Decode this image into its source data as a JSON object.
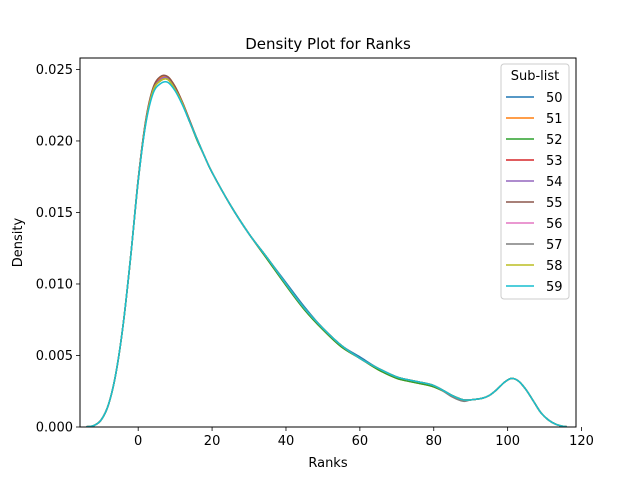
{
  "chart_data": {
    "type": "line",
    "title": "Density Plot for Ranks",
    "xlabel": "Ranks",
    "ylabel": "Density",
    "xlim": [
      -15.75,
      118.5
    ],
    "ylim": [
      0,
      0.0258
    ],
    "xticks": [
      0,
      20,
      40,
      60,
      80,
      100,
      120
    ],
    "yticks": [
      0.0,
      0.005,
      0.01,
      0.015,
      0.02,
      0.025
    ],
    "ytick_labels": [
      "0.000",
      "0.005",
      "0.010",
      "0.015",
      "0.020",
      "0.025"
    ],
    "grid": false,
    "legend": {
      "title": "Sub-list",
      "placement": "top-right"
    },
    "x": [
      -14,
      -12,
      -10,
      -8,
      -6,
      -4,
      -2,
      0,
      2,
      4,
      6,
      8,
      10,
      12,
      14,
      16,
      18,
      20,
      25,
      30,
      35,
      40,
      45,
      50,
      55,
      60,
      65,
      70,
      75,
      80,
      85,
      88,
      90,
      93,
      95,
      97,
      99,
      101,
      103,
      105,
      107,
      109,
      111,
      113,
      115,
      116
    ],
    "series": [
      {
        "name": "50",
        "color": "#1f77b4",
        "values": [
          2e-05,
          0.0001,
          0.0005,
          0.0016,
          0.0038,
          0.0073,
          0.012,
          0.0173,
          0.0213,
          0.0236,
          0.0243,
          0.0244,
          0.0237,
          0.0226,
          0.0213,
          0.0201,
          0.0189,
          0.0178,
          0.0155,
          0.0135,
          0.0118,
          0.0101,
          0.0084,
          0.0069,
          0.0057,
          0.0049,
          0.0041,
          0.0035,
          0.0032,
          0.0029,
          0.0022,
          0.0019,
          0.0019,
          0.002,
          0.0022,
          0.0026,
          0.0031,
          0.0034,
          0.0032,
          0.0026,
          0.0018,
          0.001,
          0.0005,
          0.0002,
          5e-05,
          2e-05
        ]
      },
      {
        "name": "51",
        "color": "#ff7f0e",
        "values": [
          2e-05,
          0.0001,
          0.0005,
          0.0016,
          0.0038,
          0.0073,
          0.012,
          0.0173,
          0.0213,
          0.0236,
          0.0244,
          0.0245,
          0.0238,
          0.0227,
          0.0214,
          0.0201,
          0.0189,
          0.0178,
          0.0155,
          0.0135,
          0.0117,
          0.0099,
          0.0082,
          0.0068,
          0.0056,
          0.0048,
          0.004,
          0.0034,
          0.0031,
          0.0028,
          0.0022,
          0.0019,
          0.0019,
          0.002,
          0.0022,
          0.0026,
          0.0031,
          0.0034,
          0.0032,
          0.0026,
          0.0018,
          0.001,
          0.0005,
          0.0002,
          5e-05,
          2e-05
        ]
      },
      {
        "name": "52",
        "color": "#2ca02c",
        "values": [
          2e-05,
          0.0001,
          0.0005,
          0.0016,
          0.0038,
          0.0073,
          0.012,
          0.0172,
          0.0212,
          0.0235,
          0.0242,
          0.0243,
          0.0236,
          0.0226,
          0.0213,
          0.02,
          0.0189,
          0.0178,
          0.0155,
          0.0135,
          0.0117,
          0.0099,
          0.0082,
          0.0068,
          0.0056,
          0.0048,
          0.004,
          0.0034,
          0.0031,
          0.0028,
          0.0022,
          0.0019,
          0.0019,
          0.002,
          0.0022,
          0.0026,
          0.0031,
          0.0034,
          0.0032,
          0.0026,
          0.0018,
          0.001,
          0.0005,
          0.0002,
          5e-05,
          2e-05
        ]
      },
      {
        "name": "53",
        "color": "#d62728",
        "values": [
          2e-05,
          0.0001,
          0.0005,
          0.0016,
          0.0038,
          0.0073,
          0.012,
          0.0173,
          0.0213,
          0.0236,
          0.0243,
          0.0244,
          0.0237,
          0.0226,
          0.0213,
          0.0201,
          0.0189,
          0.0178,
          0.0155,
          0.0135,
          0.0118,
          0.01,
          0.0083,
          0.0069,
          0.0057,
          0.0048,
          0.0041,
          0.0035,
          0.0032,
          0.0029,
          0.0022,
          0.0019,
          0.0019,
          0.002,
          0.0022,
          0.0026,
          0.0031,
          0.0034,
          0.0032,
          0.0026,
          0.0018,
          0.001,
          0.0005,
          0.0002,
          5e-05,
          2e-05
        ]
      },
      {
        "name": "54",
        "color": "#9467bd",
        "values": [
          2e-05,
          0.0001,
          0.0005,
          0.0016,
          0.0038,
          0.0073,
          0.012,
          0.0172,
          0.0212,
          0.0235,
          0.0243,
          0.0244,
          0.0237,
          0.0226,
          0.0213,
          0.0201,
          0.0189,
          0.0178,
          0.0155,
          0.0135,
          0.0118,
          0.01,
          0.0083,
          0.0069,
          0.0057,
          0.0048,
          0.0041,
          0.0035,
          0.0032,
          0.0029,
          0.0022,
          0.0019,
          0.0019,
          0.002,
          0.0022,
          0.0026,
          0.0031,
          0.0034,
          0.0032,
          0.0026,
          0.0018,
          0.001,
          0.0005,
          0.0002,
          5e-05,
          2e-05
        ]
      },
      {
        "name": "55",
        "color": "#8c564b",
        "values": [
          2e-05,
          0.0001,
          0.0005,
          0.0016,
          0.0038,
          0.0073,
          0.012,
          0.0173,
          0.0214,
          0.0237,
          0.0245,
          0.0245,
          0.0238,
          0.0227,
          0.0214,
          0.0201,
          0.0189,
          0.0178,
          0.0155,
          0.0135,
          0.0118,
          0.01,
          0.0083,
          0.0069,
          0.0057,
          0.0048,
          0.0041,
          0.0035,
          0.0032,
          0.0029,
          0.0022,
          0.0019,
          0.0019,
          0.002,
          0.0022,
          0.0026,
          0.0031,
          0.0034,
          0.0032,
          0.0026,
          0.0018,
          0.001,
          0.0005,
          0.0002,
          5e-05,
          2e-05
        ]
      },
      {
        "name": "56",
        "color": "#e377c2",
        "values": [
          2e-05,
          0.0001,
          0.0005,
          0.0016,
          0.0038,
          0.0073,
          0.012,
          0.0172,
          0.0212,
          0.0235,
          0.0242,
          0.0243,
          0.0236,
          0.0226,
          0.0213,
          0.0201,
          0.0189,
          0.0178,
          0.0155,
          0.0135,
          0.0118,
          0.01,
          0.0083,
          0.0069,
          0.0057,
          0.0048,
          0.0041,
          0.0035,
          0.0032,
          0.0029,
          0.0022,
          0.0019,
          0.0019,
          0.002,
          0.0022,
          0.0026,
          0.0031,
          0.0034,
          0.0032,
          0.0026,
          0.0018,
          0.001,
          0.0005,
          0.0002,
          5e-05,
          2e-05
        ]
      },
      {
        "name": "57",
        "color": "#7f7f7f",
        "values": [
          2e-05,
          0.0001,
          0.0005,
          0.0016,
          0.0038,
          0.0073,
          0.012,
          0.0172,
          0.0212,
          0.0235,
          0.0242,
          0.0243,
          0.0236,
          0.0226,
          0.0213,
          0.0201,
          0.0189,
          0.0178,
          0.0155,
          0.0135,
          0.0118,
          0.01,
          0.0083,
          0.0069,
          0.0057,
          0.0048,
          0.0041,
          0.0035,
          0.0032,
          0.0029,
          0.0021,
          0.0018,
          0.0019,
          0.002,
          0.0022,
          0.0026,
          0.0031,
          0.0034,
          0.0032,
          0.0026,
          0.0018,
          0.001,
          0.0005,
          0.0002,
          5e-05,
          2e-05
        ]
      },
      {
        "name": "58",
        "color": "#bcbd22",
        "values": [
          2e-05,
          0.0001,
          0.0005,
          0.0016,
          0.0038,
          0.0073,
          0.012,
          0.0172,
          0.0212,
          0.0235,
          0.0242,
          0.0243,
          0.0236,
          0.0226,
          0.0213,
          0.0201,
          0.0189,
          0.0178,
          0.0155,
          0.0135,
          0.0118,
          0.01,
          0.0083,
          0.0069,
          0.0057,
          0.0048,
          0.0041,
          0.0035,
          0.0032,
          0.0029,
          0.0022,
          0.0019,
          0.0019,
          0.002,
          0.0022,
          0.0026,
          0.0031,
          0.0034,
          0.0032,
          0.0026,
          0.0018,
          0.001,
          0.0005,
          0.0002,
          5e-05,
          2e-05
        ]
      },
      {
        "name": "59",
        "color": "#17becf",
        "values": [
          2e-05,
          0.0001,
          0.0005,
          0.0016,
          0.0038,
          0.0073,
          0.012,
          0.0172,
          0.0211,
          0.0233,
          0.024,
          0.0241,
          0.0235,
          0.0225,
          0.0213,
          0.0201,
          0.0189,
          0.0178,
          0.0155,
          0.0135,
          0.0118,
          0.01,
          0.0083,
          0.0069,
          0.0057,
          0.0048,
          0.0041,
          0.0035,
          0.0032,
          0.0029,
          0.0022,
          0.0019,
          0.0019,
          0.002,
          0.0022,
          0.0026,
          0.0031,
          0.0034,
          0.0032,
          0.0026,
          0.0018,
          0.001,
          0.0005,
          0.0002,
          5e-05,
          2e-05
        ]
      }
    ]
  }
}
